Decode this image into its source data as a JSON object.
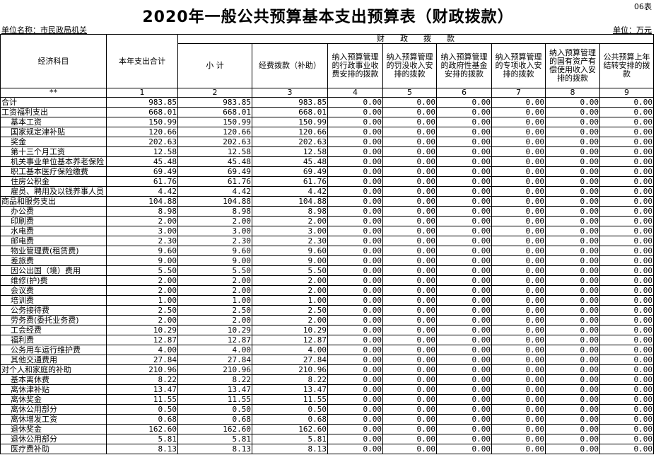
{
  "title": "2020年一般公共预算基本支出预算表（财政拨款）",
  "form_no": "06表",
  "unit_name": "单位名称：市民政局机关",
  "unit": "单位：万元",
  "headers": {
    "subject": "经济科目",
    "total": "本年支出合计",
    "group": "财　　政　　拨　　款",
    "cols": [
      "小 计",
      "经费拨款（补助）",
      "纳入预算管理的行政事业收费安排的拨款",
      "纳入预算管理的罚没收入安排的拨款",
      "纳入预算管理的政府性基金安排的拨款",
      "纳入预算管理的专项收入安排的拨款",
      "纳入预算管理的国有资产有偿使用收入安排的拨款",
      "公共预算上年结转安排的拨款"
    ],
    "numbers": [
      "**",
      "1",
      "2",
      "3",
      "4",
      "5",
      "6",
      "7",
      "8",
      "9"
    ]
  },
  "rows": [
    {
      "name": "合计",
      "level": 0,
      "values": [
        "983.85",
        "983.85",
        "983.85",
        "0.00",
        "0.00",
        "0.00",
        "0.00",
        "0.00",
        "0.00"
      ]
    },
    {
      "name": "工资福利支出",
      "level": 0,
      "values": [
        "668.01",
        "668.01",
        "668.01",
        "0.00",
        "0.00",
        "0.00",
        "0.00",
        "0.00",
        "0.00"
      ]
    },
    {
      "name": "基本工资",
      "level": 1,
      "values": [
        "150.99",
        "150.99",
        "150.99",
        "0.00",
        "0.00",
        "0.00",
        "0.00",
        "0.00",
        "0.00"
      ]
    },
    {
      "name": "国家规定津补贴",
      "level": 1,
      "values": [
        "120.66",
        "120.66",
        "120.66",
        "0.00",
        "0.00",
        "0.00",
        "0.00",
        "0.00",
        "0.00"
      ]
    },
    {
      "name": "奖金",
      "level": 1,
      "values": [
        "202.63",
        "202.63",
        "202.63",
        "0.00",
        "0.00",
        "0.00",
        "0.00",
        "0.00",
        "0.00"
      ]
    },
    {
      "name": "第十三个月工资",
      "level": 1,
      "values": [
        "12.58",
        "12.58",
        "12.58",
        "0.00",
        "0.00",
        "0.00",
        "0.00",
        "0.00",
        "0.00"
      ]
    },
    {
      "name": "机关事业单位基本养老保险",
      "level": 1,
      "values": [
        "45.48",
        "45.48",
        "45.48",
        "0.00",
        "0.00",
        "0.00",
        "0.00",
        "0.00",
        "0.00"
      ]
    },
    {
      "name": "职工基本医疗保险缴费",
      "level": 1,
      "values": [
        "69.49",
        "69.49",
        "69.49",
        "0.00",
        "0.00",
        "0.00",
        "0.00",
        "0.00",
        "0.00"
      ]
    },
    {
      "name": "住房公积金",
      "level": 1,
      "values": [
        "61.76",
        "61.76",
        "61.76",
        "0.00",
        "0.00",
        "0.00",
        "0.00",
        "0.00",
        "0.00"
      ]
    },
    {
      "name": "雇员、聘用及以钱养事人员",
      "level": 1,
      "values": [
        "4.42",
        "4.42",
        "4.42",
        "0.00",
        "0.00",
        "0.00",
        "0.00",
        "0.00",
        "0.00"
      ]
    },
    {
      "name": "商品和服务支出",
      "level": 0,
      "values": [
        "104.88",
        "104.88",
        "104.88",
        "0.00",
        "0.00",
        "0.00",
        "0.00",
        "0.00",
        "0.00"
      ]
    },
    {
      "name": "办公费",
      "level": 1,
      "values": [
        "8.98",
        "8.98",
        "8.98",
        "0.00",
        "0.00",
        "0.00",
        "0.00",
        "0.00",
        "0.00"
      ]
    },
    {
      "name": "印刷费",
      "level": 1,
      "values": [
        "2.00",
        "2.00",
        "2.00",
        "0.00",
        "0.00",
        "0.00",
        "0.00",
        "0.00",
        "0.00"
      ]
    },
    {
      "name": "水电费",
      "level": 1,
      "values": [
        "3.00",
        "3.00",
        "3.00",
        "0.00",
        "0.00",
        "0.00",
        "0.00",
        "0.00",
        "0.00"
      ]
    },
    {
      "name": "邮电费",
      "level": 1,
      "values": [
        "2.30",
        "2.30",
        "2.30",
        "0.00",
        "0.00",
        "0.00",
        "0.00",
        "0.00",
        "0.00"
      ]
    },
    {
      "name": "物业管理费(租赁费)",
      "level": 1,
      "values": [
        "9.60",
        "9.60",
        "9.60",
        "0.00",
        "0.00",
        "0.00",
        "0.00",
        "0.00",
        "0.00"
      ]
    },
    {
      "name": "差旅费",
      "level": 1,
      "values": [
        "9.00",
        "9.00",
        "9.00",
        "0.00",
        "0.00",
        "0.00",
        "0.00",
        "0.00",
        "0.00"
      ]
    },
    {
      "name": "因公出国（境）费用",
      "level": 1,
      "values": [
        "5.50",
        "5.50",
        "5.50",
        "0.00",
        "0.00",
        "0.00",
        "0.00",
        "0.00",
        "0.00"
      ]
    },
    {
      "name": "维修(护)费",
      "level": 1,
      "values": [
        "2.00",
        "2.00",
        "2.00",
        "0.00",
        "0.00",
        "0.00",
        "0.00",
        "0.00",
        "0.00"
      ]
    },
    {
      "name": "会议费",
      "level": 1,
      "values": [
        "2.00",
        "2.00",
        "2.00",
        "0.00",
        "0.00",
        "0.00",
        "0.00",
        "0.00",
        "0.00"
      ]
    },
    {
      "name": "培训费",
      "level": 1,
      "values": [
        "1.00",
        "1.00",
        "1.00",
        "0.00",
        "0.00",
        "0.00",
        "0.00",
        "0.00",
        "0.00"
      ]
    },
    {
      "name": "公务接待费",
      "level": 1,
      "values": [
        "2.50",
        "2.50",
        "2.50",
        "0.00",
        "0.00",
        "0.00",
        "0.00",
        "0.00",
        "0.00"
      ]
    },
    {
      "name": "劳务费(委托业务费)",
      "level": 1,
      "values": [
        "2.00",
        "2.00",
        "2.00",
        "0.00",
        "0.00",
        "0.00",
        "0.00",
        "0.00",
        "0.00"
      ]
    },
    {
      "name": "工会经费",
      "level": 1,
      "values": [
        "10.29",
        "10.29",
        "10.29",
        "0.00",
        "0.00",
        "0.00",
        "0.00",
        "0.00",
        "0.00"
      ]
    },
    {
      "name": "福利费",
      "level": 1,
      "values": [
        "12.87",
        "12.87",
        "12.87",
        "0.00",
        "0.00",
        "0.00",
        "0.00",
        "0.00",
        "0.00"
      ]
    },
    {
      "name": "公务用车运行维护费",
      "level": 1,
      "values": [
        "4.00",
        "4.00",
        "4.00",
        "0.00",
        "0.00",
        "0.00",
        "0.00",
        "0.00",
        "0.00"
      ]
    },
    {
      "name": "其他交通费用",
      "level": 1,
      "values": [
        "27.84",
        "27.84",
        "27.84",
        "0.00",
        "0.00",
        "0.00",
        "0.00",
        "0.00",
        "0.00"
      ]
    },
    {
      "name": "对个人和家庭的补助",
      "level": 0,
      "values": [
        "210.96",
        "210.96",
        "210.96",
        "0.00",
        "0.00",
        "0.00",
        "0.00",
        "0.00",
        "0.00"
      ]
    },
    {
      "name": "基本离休费",
      "level": 1,
      "values": [
        "8.22",
        "8.22",
        "8.22",
        "0.00",
        "0.00",
        "0.00",
        "0.00",
        "0.00",
        "0.00"
      ]
    },
    {
      "name": "离休津补贴",
      "level": 1,
      "values": [
        "13.47",
        "13.47",
        "13.47",
        "0.00",
        "0.00",
        "0.00",
        "0.00",
        "0.00",
        "0.00"
      ]
    },
    {
      "name": "离休奖金",
      "level": 1,
      "values": [
        "11.55",
        "11.55",
        "11.55",
        "0.00",
        "0.00",
        "0.00",
        "0.00",
        "0.00",
        "0.00"
      ]
    },
    {
      "name": "离休公用部分",
      "level": 1,
      "values": [
        "0.50",
        "0.50",
        "0.50",
        "0.00",
        "0.00",
        "0.00",
        "0.00",
        "0.00",
        "0.00"
      ]
    },
    {
      "name": "离休增发工资",
      "level": 1,
      "values": [
        "0.68",
        "0.68",
        "0.68",
        "0.00",
        "0.00",
        "0.00",
        "0.00",
        "0.00",
        "0.00"
      ]
    },
    {
      "name": "退休奖金",
      "level": 1,
      "values": [
        "162.60",
        "162.60",
        "162.60",
        "0.00",
        "0.00",
        "0.00",
        "0.00",
        "0.00",
        "0.00"
      ]
    },
    {
      "name": "退休公用部分",
      "level": 1,
      "values": [
        "5.81",
        "5.81",
        "5.81",
        "0.00",
        "0.00",
        "0.00",
        "0.00",
        "0.00",
        "0.00"
      ]
    },
    {
      "name": "医疗费补助",
      "level": 1,
      "values": [
        "8.13",
        "8.13",
        "8.13",
        "0.00",
        "0.00",
        "0.00",
        "0.00",
        "0.00",
        "0.00"
      ]
    }
  ]
}
